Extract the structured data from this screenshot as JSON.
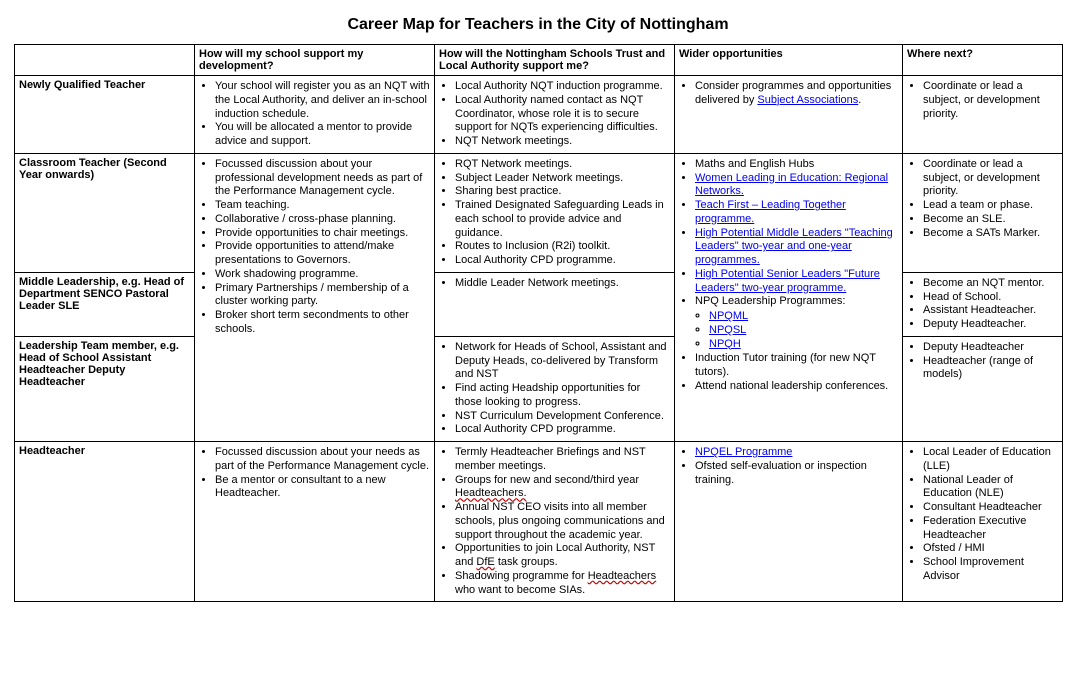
{
  "title": "Career Map for Teachers in the City of Nottingham",
  "columns": [
    "",
    "How will my school support my development?",
    "How will the Nottingham Schools Trust and Local Authority support me?",
    "Wider opportunities",
    "Where next?"
  ],
  "row_labels": {
    "nqt": "Newly Qualified Teacher",
    "classroom": "Classroom Teacher (Second Year onwards)",
    "middle": "Middle Leadership, e.g. Head of Department SENCO Pastoral Leader SLE",
    "leadership": "Leadership Team member, e.g. Head of School Assistant Headteacher Deputy Headteacher",
    "head": "Headteacher"
  },
  "nqt_school": [
    "Your school will register you as an NQT with the Local Authority, and deliver an in-school induction schedule.",
    "You will be allocated a mentor to provide advice and support."
  ],
  "nqt_nst": [
    "Local Authority NQT induction programme.",
    "Local Authority named contact as NQT Coordinator, whose role it is to secure support for NQTs experiencing difficulties.",
    "NQT Network meetings."
  ],
  "nqt_wider_pre": "Consider programmes and opportunities delivered by ",
  "nqt_wider_link": "Subject Associations",
  "nqt_next": [
    "Coordinate or lead a subject, or development priority."
  ],
  "shared_school_a": [
    "Focussed discussion about your professional development needs as part of the Performance Management cycle.",
    "Team teaching.",
    "Collaborative / cross-phase planning.",
    "Provide opportunities to chair meetings.",
    "Provide opportunities to attend/make presentations to Governors.",
    "Work shadowing programme.",
    "Primary Partnerships / membership of a cluster working party.",
    "Broker short term secondments to other schools."
  ],
  "classroom_nst": [
    "RQT Network meetings.",
    "Subject Leader Network meetings.",
    "Sharing best practice.",
    "Trained Designated Safeguarding Leads in each school to provide advice and guidance.",
    "Routes to Inclusion (R2i) toolkit.",
    "Local Authority CPD programme."
  ],
  "middle_nst": [
    "Middle Leader Network meetings."
  ],
  "leadership_nst": [
    "Network for Heads of School, Assistant and Deputy Heads, co-delivered by Transform and NST",
    "Find acting Headship opportunities for those looking to progress.",
    "NST Curriculum Development Conference.",
    "Local Authority CPD programme."
  ],
  "wider_shared": {
    "i0": "Maths and English Hubs",
    "i1": "Women Leading in Education: Regional Networks.",
    "i2": "Teach First – Leading Together programme.",
    "i3": "High Potential Middle Leaders \"Teaching Leaders\" two-year and one-year programmes.",
    "i4": "High Potential Senior Leaders \"Future Leaders\" two-year programme.",
    "i5": "NPQ Leadership Programmes:",
    "sub": [
      "NPQML",
      "NPQSL",
      "NPQH"
    ],
    "i6": "Induction Tutor training (for new NQT tutors).",
    "i7": "Attend national leadership conferences."
  },
  "classroom_next": [
    "Coordinate or lead a subject, or development priority.",
    "Lead a team or phase.",
    "Become an SLE.",
    "Become a SATs Marker."
  ],
  "middle_next": [
    "Become an NQT mentor.",
    "Head of School.",
    "Assistant Headteacher.",
    "Deputy Headteacher."
  ],
  "leadership_next": [
    "Deputy Headteacher",
    "Headteacher (range of models)"
  ],
  "head_school": [
    "Focussed discussion about your needs as part of the Performance Management cycle.",
    "Be a mentor or consultant to a new Headteacher."
  ],
  "head_nst": {
    "i0": "Termly Headteacher Briefings and NST member meetings.",
    "i1a": "Groups for new and second/third year ",
    "i1err": "Headteachers.",
    "i2": "Annual NST CEO visits into all member schools, plus ongoing communications and support throughout the academic year.",
    "i3a": "Opportunities to join Local Authority, NST and ",
    "i3err": "DfE",
    "i3b": " task groups.",
    "i4a": "Shadowing programme for ",
    "i4err": "Headteachers",
    "i4b": " who want to become SIAs."
  },
  "head_wider": {
    "link": "NPQEL Programme",
    "i1": "Ofsted self-evaluation or inspection training."
  },
  "head_next": [
    "Local Leader of Education (LLE)",
    "National Leader of Education (NLE)",
    "Consultant Headteacher",
    "Federation Executive Headteacher",
    "Ofsted / HMI",
    "School Improvement Advisor"
  ]
}
